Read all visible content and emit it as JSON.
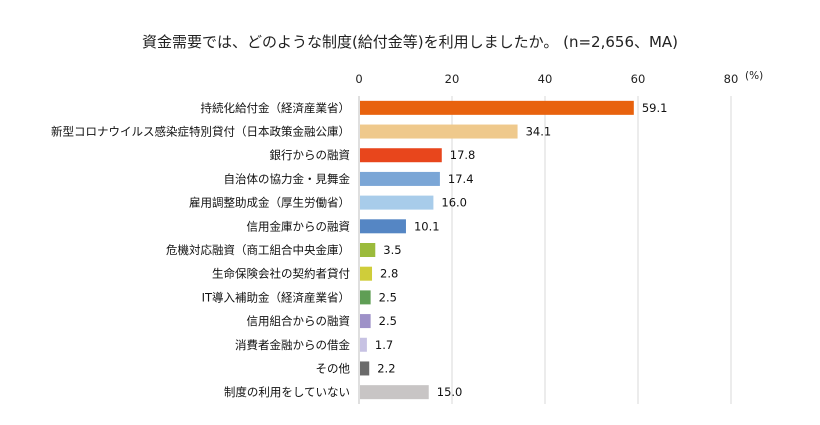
{
  "chart_data": {
    "type": "bar",
    "orientation": "horizontal",
    "title": "資金需要では、どのような制度(給付金等)を利用しましたか。 (n=2,656、MA)",
    "unit": "(%)",
    "xlim": [
      0,
      80
    ],
    "xticks": [
      "0",
      "20",
      "40",
      "60",
      "80"
    ],
    "grid": true,
    "legend": "none",
    "categories": [
      "持続化給付金（経済産業省）",
      "新型コロナウイルス感染症特別貸付（日本政策金融公庫）",
      "銀行からの融資",
      "自治体の協力金・見舞金",
      "雇用調整助成金（厚生労働省）",
      "信用金庫からの融資",
      "危機対応融資（商工組合中央金庫）",
      "生命保険会社の契約者貸付",
      "IT導入補助金（経済産業省）",
      "信用組合からの融資",
      "消費者金融からの借金",
      "その他",
      "制度の利用をしていない"
    ],
    "values": [
      59.1,
      34.1,
      17.8,
      17.4,
      16.0,
      10.1,
      3.5,
      2.8,
      2.5,
      2.5,
      1.7,
      2.2,
      15.0
    ],
    "value_labels": [
      "59.1",
      "34.1",
      "17.8",
      "17.4",
      "16.0",
      "10.1",
      "3.5",
      "2.8",
      "2.5",
      "2.5",
      "1.7",
      "2.2",
      "15.0"
    ],
    "colors": [
      "#E8620E",
      "#EFC98C",
      "#E8461C",
      "#7BA6D6",
      "#A8CCEA",
      "#5586C4",
      "#9BBB3C",
      "#CFCD3A",
      "#5F9E55",
      "#9E91C8",
      "#C7C2E3",
      "#6B6B6B",
      "#C8C5C5"
    ]
  }
}
